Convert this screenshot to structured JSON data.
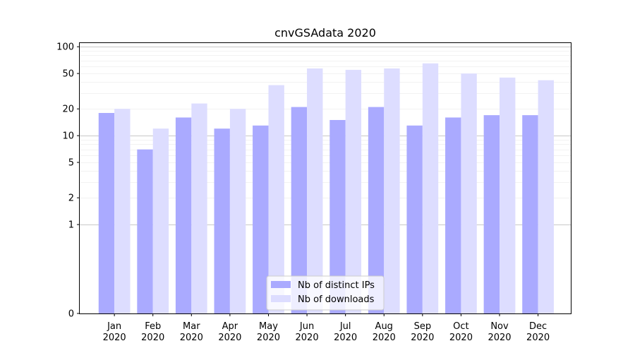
{
  "chart_data": {
    "type": "bar",
    "title": "cnvGSAdata 2020",
    "scale": "symlog",
    "xlabel": "",
    "ylabel": "",
    "ylim": [
      0,
      110
    ],
    "yticks": [
      0,
      1,
      2,
      5,
      10,
      20,
      50,
      100
    ],
    "grid": true,
    "legend_position": "lower-center",
    "categories": [
      [
        "Jan",
        "2020"
      ],
      [
        "Feb",
        "2020"
      ],
      [
        "Mar",
        "2020"
      ],
      [
        "Apr",
        "2020"
      ],
      [
        "May",
        "2020"
      ],
      [
        "Jun",
        "2020"
      ],
      [
        "Jul",
        "2020"
      ],
      [
        "Aug",
        "2020"
      ],
      [
        "Sep",
        "2020"
      ],
      [
        "Oct",
        "2020"
      ],
      [
        "Nov",
        "2020"
      ],
      [
        "Dec",
        "2020"
      ]
    ],
    "series": [
      {
        "name": "Nb of distinct IPs",
        "color": "#aaaaff",
        "values": [
          18,
          7,
          16,
          12,
          13,
          21,
          15,
          21,
          13,
          16,
          17,
          17
        ]
      },
      {
        "name": "Nb of downloads",
        "color": "#ddddff",
        "values": [
          20,
          12,
          23,
          20,
          37,
          57,
          55,
          57,
          65,
          50,
          45,
          42
        ]
      }
    ]
  }
}
